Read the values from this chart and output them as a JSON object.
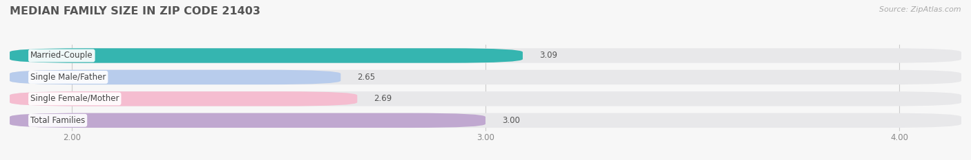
{
  "title": "MEDIAN FAMILY SIZE IN ZIP CODE 21403",
  "source": "Source: ZipAtlas.com",
  "categories": [
    "Married-Couple",
    "Single Male/Father",
    "Single Female/Mother",
    "Total Families"
  ],
  "values": [
    3.09,
    2.65,
    2.69,
    3.0
  ],
  "bar_colors": [
    "#35b5b0",
    "#b8ccec",
    "#f5bdd0",
    "#c0a8d0"
  ],
  "bar_bg_color": "#e8e8ea",
  "xmin": 0.0,
  "xlim_left": 1.85,
  "xlim_right": 4.15,
  "xticks": [
    2.0,
    3.0,
    4.0
  ],
  "xtick_labels": [
    "2.00",
    "3.00",
    "4.00"
  ],
  "background_color": "#f7f7f7",
  "title_fontsize": 11.5,
  "label_fontsize": 8.5,
  "value_fontsize": 8.5,
  "source_fontsize": 8.0,
  "bar_height": 0.68,
  "bar_gap": 0.32
}
